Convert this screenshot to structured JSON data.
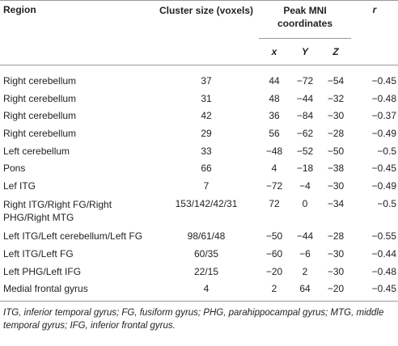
{
  "headers": {
    "region": "Region",
    "cluster_size": "Cluster size (voxels)",
    "peak_mni": "Peak MNI coordinates",
    "r": "r",
    "x": "x",
    "y": "Y",
    "z": "Z"
  },
  "rows": [
    {
      "region": "Right cerebellum",
      "cluster": "37",
      "x": "44",
      "y": "−72",
      "z": "−54",
      "r": "−0.45"
    },
    {
      "region": "Right cerebellum",
      "cluster": "31",
      "x": "48",
      "y": "−44",
      "z": "−32",
      "r": "−0.48"
    },
    {
      "region": "Right cerebellum",
      "cluster": "42",
      "x": "36",
      "y": "−84",
      "z": "−30",
      "r": "−0.37"
    },
    {
      "region": "Right cerebellum",
      "cluster": "29",
      "x": "56",
      "y": "−62",
      "z": "−28",
      "r": "−0.49"
    },
    {
      "region": "Left cerebellum",
      "cluster": "33",
      "x": "−48",
      "y": "−52",
      "z": "−50",
      "r": "−0.5"
    },
    {
      "region": "Pons",
      "cluster": "66",
      "x": "4",
      "y": "−18",
      "z": "−38",
      "r": "−0.45"
    },
    {
      "region": "Lef ITG",
      "cluster": "7",
      "x": "−72",
      "y": "−4",
      "z": "−30",
      "r": "−0.49"
    },
    {
      "region": "Right ITG/Right FG/Right PHG/Right MTG",
      "cluster": "153/142/42/31",
      "x": "72",
      "y": "0",
      "z": "−34",
      "r": "−0.5"
    },
    {
      "region": "Left ITG/Left cerebellum/Left FG",
      "cluster": "98/61/48",
      "x": "−50",
      "y": "−44",
      "z": "−28",
      "r": "−0.55"
    },
    {
      "region": "Left ITG/Left FG",
      "cluster": "60/35",
      "x": "−60",
      "y": "−6",
      "z": "−30",
      "r": "−0.44"
    },
    {
      "region": "Left PHG/Left IFG",
      "cluster": "22/15",
      "x": "−20",
      "y": "2",
      "z": "−30",
      "r": "−0.48"
    },
    {
      "region": "Medial frontal gyrus",
      "cluster": "4",
      "x": "2",
      "y": "64",
      "z": "−20",
      "r": "−0.45"
    }
  ],
  "footnote": "ITG, inferior temporal gyrus; FG, fusiform gyrus; PHG, parahippocampal gyrus; MTG, middle temporal gyrus; IFG, inferior frontal gyrus."
}
